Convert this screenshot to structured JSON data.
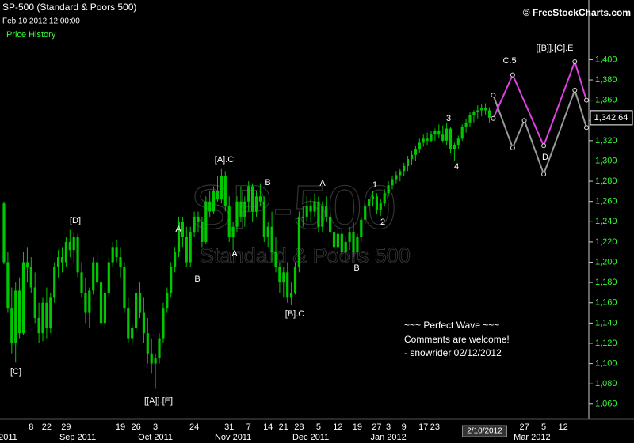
{
  "chart_data": {
    "type": "candlestick",
    "title": "SP-500 (Standard & Poors 500)",
    "subtitle": "Feb 10 2012 12:00:00",
    "panel_label": "Price History",
    "copyright": "© FreeStockCharts.com",
    "watermark": [
      "SP-500",
      "Standard & Poors 500"
    ],
    "comment": [
      "~~~ Perfect Wave ~~~",
      "Comments are welcome!",
      "- snowrider  02/12/2012"
    ],
    "annotations": [
      "[C]",
      "[D]",
      "[[A]].[E]",
      "A",
      "B",
      "[A].C",
      "A",
      "B",
      "[B].C",
      "A",
      "B",
      "1",
      "2",
      "3",
      "4",
      "C.5",
      "D",
      "[[B]].[C].E"
    ],
    "last_price_label": "1,342.64",
    "color": "#00c800",
    "ylim": [
      1045,
      1455
    ],
    "yticks": [
      {
        "value": 1060,
        "label": "1,060"
      },
      {
        "value": 1080,
        "label": "1,080"
      },
      {
        "value": 1100,
        "label": "1,100"
      },
      {
        "value": 1120,
        "label": "1,120"
      },
      {
        "value": 1140,
        "label": "1,140"
      },
      {
        "value": 1160,
        "label": "1,160"
      },
      {
        "value": 1180,
        "label": "1,180"
      },
      {
        "value": 1200,
        "label": "1,200"
      },
      {
        "value": 1220,
        "label": "1,220"
      },
      {
        "value": 1240,
        "label": "1,240"
      },
      {
        "value": 1260,
        "label": "1,260"
      },
      {
        "value": 1280,
        "label": "1,280"
      },
      {
        "value": 1300,
        "label": "1,300"
      },
      {
        "value": 1320,
        "label": "1,320"
      },
      {
        "value": 1340,
        "label": "1,340"
      },
      {
        "value": 1360,
        "label": "1,360"
      },
      {
        "value": 1380,
        "label": "1,380"
      },
      {
        "value": 1400,
        "label": "1,400"
      }
    ],
    "categories": [
      null,
      null,
      null,
      null,
      null,
      null,
      null,
      "8",
      null,
      null,
      null,
      "22",
      null,
      null,
      null,
      null,
      "29",
      null,
      null,
      null,
      null,
      null,
      null,
      null,
      null,
      null,
      null,
      null,
      null,
      null,
      "19",
      null,
      null,
      null,
      "26",
      null,
      null,
      null,
      null,
      "3",
      null,
      null,
      null,
      null,
      null,
      null,
      null,
      null,
      null,
      "24",
      null,
      null,
      null,
      null,
      null,
      null,
      null,
      null,
      "31",
      null,
      null,
      null,
      null,
      "7",
      null,
      null,
      null,
      null,
      "14",
      null,
      null,
      null,
      "21",
      null,
      null,
      null,
      "28",
      null,
      null,
      null,
      null,
      "5",
      null,
      null,
      null,
      null,
      "12",
      null,
      null,
      null,
      null,
      "19",
      null,
      null,
      null,
      null,
      "27",
      null,
      null,
      "3",
      null,
      null,
      null,
      "9",
      null,
      null,
      null,
      null,
      "17",
      null,
      null,
      "23",
      null,
      null,
      null,
      null,
      null,
      null,
      null,
      null,
      null,
      null,
      null,
      null,
      null,
      "2/10/2012",
      null,
      null,
      null,
      null,
      null,
      null,
      null,
      null,
      "27",
      null,
      null,
      null,
      null,
      "5",
      null,
      null,
      null,
      null,
      "12",
      null,
      null,
      null,
      null,
      null,
      null
    ],
    "months": [
      null,
      "2011",
      null,
      null,
      null,
      null,
      null,
      null,
      null,
      null,
      null,
      null,
      null,
      null,
      null,
      null,
      null,
      null,
      null,
      "Sep 2011",
      null,
      null,
      null,
      null,
      null,
      null,
      null,
      null,
      null,
      null,
      null,
      null,
      null,
      null,
      null,
      null,
      null,
      null,
      null,
      "Oct 2011",
      null,
      null,
      null,
      null,
      null,
      null,
      null,
      null,
      null,
      null,
      null,
      null,
      null,
      null,
      null,
      null,
      null,
      null,
      null,
      "Nov 2011",
      null,
      null,
      null,
      null,
      null,
      null,
      null,
      null,
      null,
      null,
      null,
      null,
      null,
      null,
      null,
      null,
      null,
      null,
      null,
      "Dec 2011",
      null,
      null,
      null,
      null,
      null,
      null,
      null,
      null,
      null,
      null,
      null,
      null,
      null,
      null,
      null,
      null,
      null,
      null,
      null,
      "Jan 2012",
      null,
      null,
      null,
      null,
      null,
      null,
      null,
      null,
      null,
      null,
      null,
      null,
      null,
      null,
      null,
      null,
      null,
      null,
      null,
      null,
      null,
      null,
      null,
      null,
      null,
      null,
      null,
      null,
      null,
      null,
      null,
      null,
      null,
      null,
      null,
      null,
      "Mar 2012",
      null,
      null,
      null,
      null,
      null,
      null,
      null,
      null,
      null,
      null,
      null,
      null,
      null,
      null
    ],
    "open": [
      1258,
      1200,
      1155,
      1120,
      1172,
      1130,
      1200,
      1195,
      1175,
      1145,
      1130,
      1160,
      1135,
      1165,
      1195,
      1205,
      1200,
      1220,
      1212,
      1225,
      1190,
      1170,
      1150,
      1172,
      1200,
      1180,
      1140,
      1170,
      1200,
      1215,
      1205,
      1195,
      1155,
      1125,
      1135,
      1170,
      1150,
      1130,
      1110,
      1100,
      1105,
      1125,
      1155,
      1170,
      1195,
      1210,
      1240,
      1225,
      1200,
      1230,
      1245,
      1240,
      1220,
      1260,
      1250,
      1270,
      1262,
      1285,
      1255,
      1225,
      1235,
      1260,
      1245,
      1260,
      1275,
      1250,
      1265,
      1260,
      1225,
      1235,
      1210,
      1195,
      1180,
      1190,
      1165,
      1170,
      1195,
      1245,
      1245,
      1255,
      1250,
      1260,
      1235,
      1255,
      1245,
      1230,
      1215,
      1228,
      1210,
      1220,
      1230,
      1210,
      1225,
      1242,
      1255,
      1262,
      1265,
      1252,
      1258,
      1268,
      1276,
      1282,
      1286,
      1290,
      1295,
      1302,
      1306,
      1312,
      1318,
      1322,
      1320,
      1326,
      1330,
      1326,
      1320,
      1332,
      1312,
      1316,
      1322,
      1334,
      1338,
      1345,
      1348,
      1350,
      1352,
      1350,
      null,
      null,
      null,
      null,
      null,
      null,
      null,
      null,
      null,
      null,
      null,
      null,
      null,
      null,
      null,
      null,
      null,
      null,
      null,
      null,
      null,
      null,
      null,
      null,
      null
    ],
    "high": [
      1260,
      1210,
      1175,
      1180,
      1185,
      1210,
      1215,
      1205,
      1190,
      1160,
      1165,
      1175,
      1170,
      1200,
      1212,
      1215,
      1225,
      1232,
      1230,
      1228,
      1200,
      1185,
      1175,
      1205,
      1210,
      1190,
      1175,
      1205,
      1220,
      1222,
      1215,
      1200,
      1165,
      1140,
      1175,
      1180,
      1165,
      1145,
      1125,
      1110,
      1130,
      1160,
      1175,
      1200,
      1215,
      1245,
      1245,
      1235,
      1235,
      1250,
      1250,
      1245,
      1265,
      1270,
      1275,
      1285,
      1292,
      1290,
      1265,
      1240,
      1265,
      1275,
      1265,
      1280,
      1278,
      1270,
      1278,
      1265,
      1240,
      1250,
      1225,
      1200,
      1195,
      1200,
      1180,
      1200,
      1250,
      1255,
      1265,
      1262,
      1268,
      1265,
      1260,
      1265,
      1255,
      1240,
      1235,
      1232,
      1225,
      1235,
      1240,
      1228,
      1245,
      1258,
      1268,
      1270,
      1268,
      1262,
      1272,
      1280,
      1285,
      1290,
      1292,
      1298,
      1305,
      1310,
      1315,
      1322,
      1326,
      1328,
      1330,
      1332,
      1336,
      1335,
      1338,
      1334,
      1318,
      1325,
      1336,
      1342,
      1348,
      1350,
      1355,
      1356,
      1357,
      1353,
      null,
      null,
      null,
      null,
      null,
      null,
      null,
      null,
      null,
      null,
      null,
      null,
      null,
      null,
      null,
      null,
      null,
      null,
      null,
      null,
      null,
      null,
      null,
      null,
      null
    ],
    "low": [
      1198,
      1150,
      1110,
      1101,
      1125,
      1128,
      1180,
      1170,
      1140,
      1120,
      1122,
      1125,
      1130,
      1160,
      1185,
      1190,
      1195,
      1205,
      1200,
      1185,
      1165,
      1140,
      1135,
      1168,
      1175,
      1135,
      1135,
      1165,
      1195,
      1200,
      1185,
      1150,
      1120,
      1118,
      1130,
      1145,
      1120,
      1100,
      1090,
      1075,
      1100,
      1120,
      1150,
      1165,
      1190,
      1205,
      1215,
      1195,
      1195,
      1225,
      1230,
      1215,
      1218,
      1245,
      1248,
      1260,
      1258,
      1250,
      1220,
      1212,
      1230,
      1240,
      1235,
      1250,
      1240,
      1245,
      1255,
      1220,
      1215,
      1200,
      1190,
      1170,
      1165,
      1160,
      1158,
      1168,
      1190,
      1235,
      1240,
      1240,
      1245,
      1230,
      1230,
      1240,
      1225,
      1210,
      1210,
      1205,
      1200,
      1212,
      1205,
      1202,
      1220,
      1238,
      1250,
      1255,
      1248,
      1246,
      1255,
      1265,
      1272,
      1278,
      1280,
      1285,
      1290,
      1296,
      1300,
      1308,
      1314,
      1316,
      1318,
      1320,
      1322,
      1318,
      1316,
      1308,
      1300,
      1312,
      1320,
      1328,
      1334,
      1338,
      1342,
      1344,
      1345,
      1338,
      null,
      null,
      null,
      null,
      null,
      null,
      null,
      null,
      null,
      null,
      null,
      null,
      null,
      null,
      null,
      null,
      null,
      null,
      null,
      null,
      null,
      null,
      null,
      null,
      null
    ],
    "close": [
      1200,
      1155,
      1120,
      1172,
      1130,
      1200,
      1195,
      1175,
      1145,
      1130,
      1160,
      1135,
      1165,
      1195,
      1205,
      1200,
      1220,
      1212,
      1225,
      1190,
      1170,
      1150,
      1172,
      1200,
      1180,
      1140,
      1170,
      1200,
      1215,
      1205,
      1195,
      1155,
      1125,
      1135,
      1170,
      1150,
      1130,
      1110,
      1100,
      1105,
      1125,
      1155,
      1170,
      1195,
      1210,
      1240,
      1225,
      1200,
      1230,
      1245,
      1240,
      1220,
      1260,
      1250,
      1270,
      1262,
      1285,
      1255,
      1225,
      1235,
      1260,
      1245,
      1260,
      1275,
      1250,
      1265,
      1260,
      1225,
      1235,
      1210,
      1195,
      1180,
      1190,
      1165,
      1170,
      1195,
      1245,
      1245,
      1255,
      1250,
      1260,
      1235,
      1255,
      1245,
      1230,
      1215,
      1228,
      1210,
      1220,
      1230,
      1210,
      1225,
      1242,
      1255,
      1262,
      1265,
      1252,
      1258,
      1268,
      1276,
      1282,
      1286,
      1290,
      1295,
      1302,
      1306,
      1312,
      1318,
      1322,
      1320,
      1326,
      1330,
      1326,
      1320,
      1332,
      1312,
      1316,
      1322,
      1334,
      1338,
      1345,
      1348,
      1350,
      1352,
      1350,
      1342.64,
      null,
      null,
      null,
      null,
      null,
      null,
      null,
      null,
      null,
      null,
      null,
      null,
      null,
      null,
      null,
      null,
      null,
      null,
      null,
      null,
      null,
      null,
      null,
      null,
      null
    ],
    "projections": [
      {
        "color": "#999999",
        "x": [
          126,
          131,
          134,
          139,
          147,
          150
        ],
        "values": [
          1365,
          1313,
          1340,
          1287,
          1370,
          1333
        ]
      },
      {
        "color": "#e040e0",
        "x": [
          126,
          131,
          139,
          147,
          150
        ],
        "values": [
          1342,
          1385,
          1315,
          1398,
          1360
        ]
      }
    ]
  }
}
